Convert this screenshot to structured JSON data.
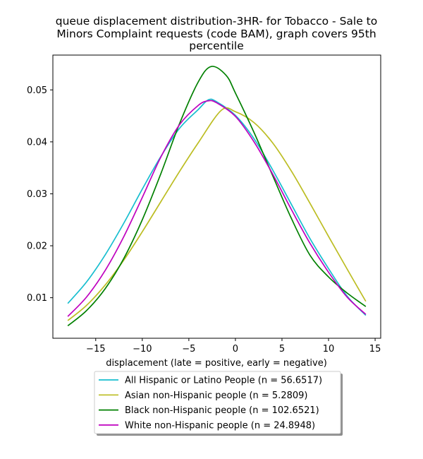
{
  "chart_data": {
    "type": "line",
    "title_lines": [
      "queue displacement distribution-3HR-  for Tobacco - Sale to",
      "Minors Complaint  requests (code BAM), graph covers 95th",
      "percentile"
    ],
    "xlabel": "displacement (late = positive, early = negative)",
    "ylabel": "",
    "xlim": [
      -19.6,
      15.6
    ],
    "ylim": [
      0.0022,
      0.0567
    ],
    "xticks": [
      -15,
      -10,
      -5,
      0,
      5,
      10,
      15
    ],
    "xtick_labels": [
      "−15",
      "−10",
      "−5",
      "0",
      "5",
      "10",
      "15"
    ],
    "yticks": [
      0.01,
      0.02,
      0.03,
      0.04,
      0.05
    ],
    "ytick_labels": [
      "0.01",
      "0.02",
      "0.03",
      "0.04",
      "0.05"
    ],
    "grid": false,
    "legend_position": "below",
    "series": [
      {
        "name": "All Hispanic or Latino People (n = 56.6517)",
        "color": "#17becf",
        "x": [
          -18,
          -16,
          -14,
          -12,
          -10,
          -8,
          -6,
          -4,
          -2.9,
          -2,
          0,
          2,
          4,
          6,
          8,
          10,
          12,
          14
        ],
        "y": [
          0.0089,
          0.013,
          0.0182,
          0.0243,
          0.0309,
          0.0372,
          0.0426,
          0.0462,
          0.0481,
          0.0477,
          0.0451,
          0.0406,
          0.0346,
          0.028,
          0.0214,
          0.0156,
          0.0103,
          0.0066
        ]
      },
      {
        "name": "Asian non-Hispanic people (n = 5.2809)",
        "color": "#bcbd22",
        "x": [
          -18,
          -16,
          -14,
          -12,
          -10,
          -8,
          -6,
          -4,
          -1.5,
          0,
          2,
          4,
          6,
          8,
          10,
          12,
          14
        ],
        "y": [
          0.0056,
          0.0085,
          0.0124,
          0.0172,
          0.0227,
          0.0285,
          0.0343,
          0.0398,
          0.0461,
          0.0458,
          0.0437,
          0.0398,
          0.0344,
          0.0282,
          0.0218,
          0.0155,
          0.0093
        ]
      },
      {
        "name": "Black non-Hispanic people (n = 102.6521)",
        "color": "#008000",
        "x": [
          -18,
          -16,
          -14,
          -12,
          -10,
          -8,
          -6,
          -4,
          -2.6,
          -1,
          0,
          2,
          4,
          6,
          8,
          10,
          12,
          14
        ],
        "y": [
          0.0046,
          0.0075,
          0.0117,
          0.0175,
          0.025,
          0.0339,
          0.0435,
          0.0515,
          0.0545,
          0.0528,
          0.0494,
          0.0418,
          0.0335,
          0.0253,
          0.0182,
          0.014,
          0.0109,
          0.0083
        ]
      },
      {
        "name": "White non-Hispanic people (n = 24.8948)",
        "color": "#bf00bf",
        "x": [
          -18,
          -16,
          -14,
          -12,
          -10,
          -8,
          -6,
          -4,
          -2.9,
          -2,
          0,
          2,
          4,
          6,
          8,
          10,
          12,
          14
        ],
        "y": [
          0.0064,
          0.0101,
          0.0152,
          0.0217,
          0.0293,
          0.0371,
          0.0433,
          0.047,
          0.0479,
          0.0475,
          0.0449,
          0.04,
          0.0338,
          0.027,
          0.0205,
          0.0149,
          0.0101,
          0.0068
        ]
      }
    ]
  }
}
